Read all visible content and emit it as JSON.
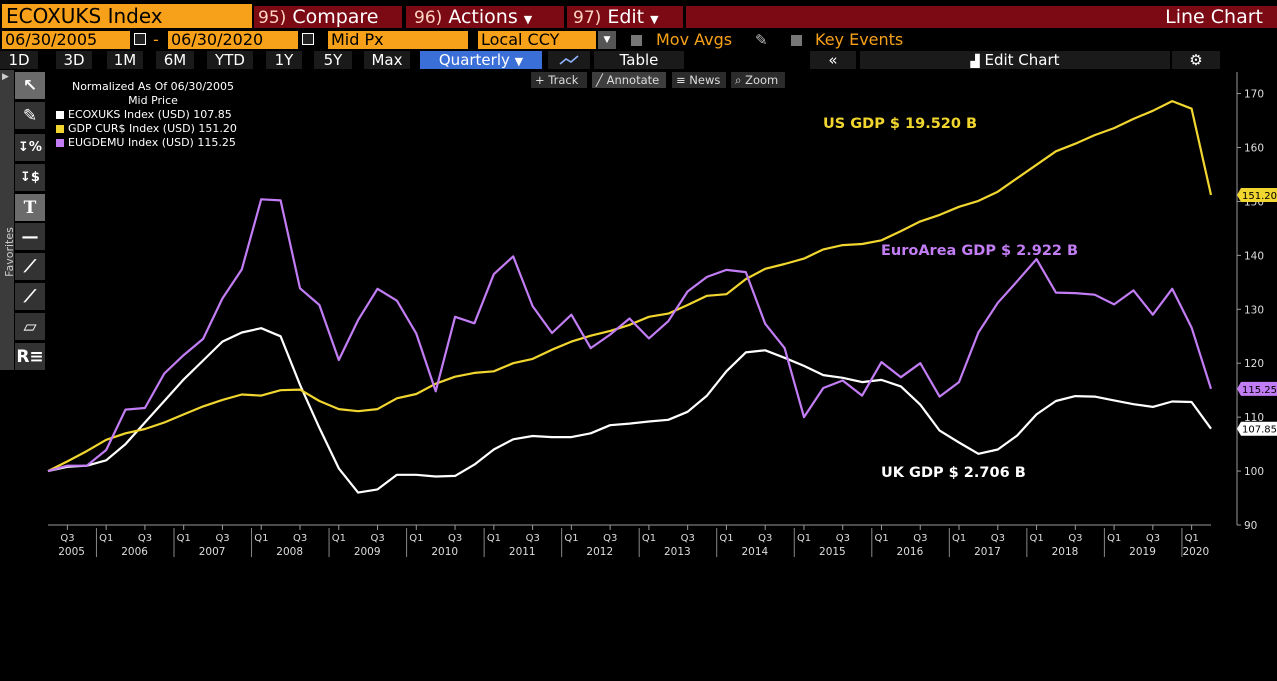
{
  "toolbar1": {
    "ticker": "ECOXUKS Index",
    "compare": {
      "num": "95)",
      "label": "Compare"
    },
    "actions": {
      "num": "96)",
      "label": "Actions",
      "arrow": "▼"
    },
    "edit": {
      "num": "97)",
      "label": "Edit",
      "arrow": "▼"
    },
    "view_title": "Line Chart"
  },
  "toolbar2": {
    "start_date": "06/30/2005",
    "dash": "-",
    "end_date": "06/30/2020",
    "field": "Mid Px",
    "currency": "Local CCY",
    "mov_avgs": "Mov Avgs",
    "key_events": "Key Events"
  },
  "toolbar3": {
    "ranges": [
      "1D",
      "3D",
      "1M",
      "6M",
      "YTD",
      "1Y",
      "5Y",
      "Max"
    ],
    "period": "Quarterly",
    "table": "Table",
    "edit_chart": "Edit Chart"
  },
  "subbar": {
    "track": "Track",
    "annotate": "Annotate",
    "news": "News",
    "zoom": "Zoom"
  },
  "sidebar": {
    "favorites": "Favorites"
  },
  "legend": {
    "title1": "Normalized As Of 06/30/2005",
    "title2": "Mid Price",
    "items": [
      {
        "label": "ECOXUKS Index (USD)",
        "value": "107.85",
        "color": "#ffffff"
      },
      {
        "label": "GDP CUR$ Index (USD)",
        "value": "151.20",
        "color": "#f1d62f"
      },
      {
        "label": "EUGDEMU Index (USD)",
        "value": "115.25",
        "color": "#c27df5"
      }
    ]
  },
  "annotations": {
    "us": "US GDP $ 19.520 B",
    "euro": "EuroArea GDP $ 2.922 B",
    "uk": "UK GDP $ 2.706 B"
  },
  "chart_data": {
    "type": "line",
    "x_start": "2005 Q2",
    "x_end": "2020 Q2",
    "x": [
      "2005Q2",
      "2005Q3",
      "2005Q4",
      "2006Q1",
      "2006Q2",
      "2006Q3",
      "2006Q4",
      "2007Q1",
      "2007Q2",
      "2007Q3",
      "2007Q4",
      "2008Q1",
      "2008Q2",
      "2008Q3",
      "2008Q4",
      "2009Q1",
      "2009Q2",
      "2009Q3",
      "2009Q4",
      "2010Q1",
      "2010Q2",
      "2010Q3",
      "2010Q4",
      "2011Q1",
      "2011Q2",
      "2011Q3",
      "2011Q4",
      "2012Q1",
      "2012Q2",
      "2012Q3",
      "2012Q4",
      "2013Q1",
      "2013Q2",
      "2013Q3",
      "2013Q4",
      "2014Q1",
      "2014Q2",
      "2014Q3",
      "2014Q4",
      "2015Q1",
      "2015Q2",
      "2015Q3",
      "2015Q4",
      "2016Q1",
      "2016Q2",
      "2016Q3",
      "2016Q4",
      "2017Q1",
      "2017Q2",
      "2017Q3",
      "2017Q4",
      "2018Q1",
      "2018Q2",
      "2018Q3",
      "2018Q4",
      "2019Q1",
      "2019Q2",
      "2019Q3",
      "2019Q4",
      "2020Q1",
      "2020Q2"
    ],
    "ylim": [
      90,
      174
    ],
    "yticks": [
      90,
      100,
      110,
      120,
      130,
      140,
      150,
      160,
      170
    ],
    "x_tick_quarters": [
      "Q3",
      "Q1",
      "Q3",
      "Q1",
      "Q3",
      "Q1",
      "Q3",
      "Q1",
      "Q3",
      "Q1",
      "Q3",
      "Q1",
      "Q3",
      "Q1",
      "Q3",
      "Q1",
      "Q3",
      "Q1",
      "Q3",
      "Q1",
      "Q3",
      "Q1",
      "Q3",
      "Q1",
      "Q3",
      "Q1",
      "Q3",
      "Q1",
      "Q3",
      "Q1"
    ],
    "years": [
      "2005",
      "2006",
      "2007",
      "2008",
      "2009",
      "2010",
      "2011",
      "2012",
      "2013",
      "2014",
      "2015",
      "2016",
      "2017",
      "2018",
      "2019",
      "2020"
    ],
    "series": [
      {
        "name": "ECOXUKS Index (USD)",
        "color": "#ffffff",
        "last": "107.85",
        "values": [
          100,
          100.8,
          101.0,
          102,
          105,
          109,
          113,
          117,
          120.5,
          124,
          125.7,
          126.5,
          125,
          116,
          108,
          100.5,
          96,
          96.6,
          99.3,
          99.3,
          99,
          99.1,
          101.2,
          104,
          105.9,
          106.5,
          106.3,
          106.3,
          107,
          108.5,
          108.8,
          109.2,
          109.5,
          111,
          114,
          118.5,
          122,
          122.4,
          121,
          119.5,
          117.8,
          117.3,
          116.5,
          116.9,
          115.7,
          112.3,
          107.5,
          105.3,
          103.2,
          104,
          106.6,
          110.5,
          113,
          113.9,
          113.8,
          113.1,
          112.4,
          111.9,
          112.9,
          112.8,
          107.85
        ]
      },
      {
        "name": "GDP CUR$ Index (USD)",
        "color": "#f1d62f",
        "last": "151.20",
        "values": [
          100,
          101.8,
          103.7,
          105.8,
          107,
          107.8,
          109,
          110.5,
          112,
          113.2,
          114.2,
          114,
          115,
          115.1,
          113,
          111.5,
          111.1,
          111.5,
          113.5,
          114.3,
          116.2,
          117.5,
          118.2,
          118.5,
          120,
          120.8,
          122.5,
          124,
          125.1,
          126,
          127.1,
          128.6,
          129.2,
          130.8,
          132.5,
          132.8,
          135.6,
          137.5,
          138.4,
          139.4,
          141.1,
          141.9,
          142.1,
          142.8,
          144.5,
          146.3,
          147.5,
          149,
          150.1,
          151.8,
          154.3,
          156.8,
          159.3,
          160.7,
          162.3,
          163.6,
          165.3,
          166.8,
          168.6,
          167.2,
          151.2
        ]
      },
      {
        "name": "EUGDEMU Index (USD)",
        "color": "#c27df5",
        "last": "115.25",
        "values": [
          100,
          101,
          101,
          103.9,
          111.4,
          111.7,
          118.1,
          121.5,
          124.5,
          132,
          137.4,
          150.4,
          150.2,
          133.9,
          130.8,
          120.6,
          128,
          133.8,
          131.6,
          125.5,
          114.8,
          128.6,
          127.4,
          136.5,
          139.8,
          130.6,
          125.6,
          129,
          122.8,
          125.3,
          128.3,
          124.6,
          127.8,
          133.3,
          136,
          137.3,
          136.9,
          127.3,
          122.8,
          110,
          115.4,
          116.8,
          114,
          120.2,
          117.4,
          120,
          113.8,
          116.5,
          125.7,
          131.2,
          135.2,
          139.3,
          133.1,
          133,
          132.7,
          130.9,
          133.5,
          129,
          133.8,
          126.6,
          115.25
        ]
      }
    ]
  }
}
